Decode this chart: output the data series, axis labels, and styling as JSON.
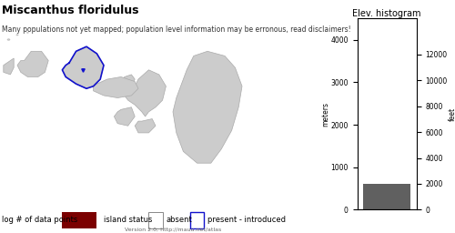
{
  "title": "Miscanthus floridulus",
  "subtitle": "Many populations not yet mapped; population level information may be erronous, read disclaimers!",
  "histogram_title": "Elev. histogram",
  "legend_label1": "log # of data points",
  "legend_label2": "island status",
  "legend_absent": "absent",
  "legend_present": "present - introduced",
  "version_text": "Version 2.0; http://mauu.net/atlas",
  "bar_color": "#7B0000",
  "hist_bar_color": "#606060",
  "background_color": "#ffffff",
  "island_color": "#cccccc",
  "island_outline": "#aaaaaa",
  "oahu_outline": "#1111cc",
  "meters_ticks": [
    0,
    1000,
    2000,
    3000,
    4000
  ],
  "feet_ticks": [
    0,
    2000,
    4000,
    6000,
    8000,
    10000,
    12000
  ],
  "title_fontsize": 9,
  "subtitle_fontsize": 5.5,
  "label_fontsize": 6,
  "axis_fontsize": 5.5,
  "hist_title_fontsize": 7
}
